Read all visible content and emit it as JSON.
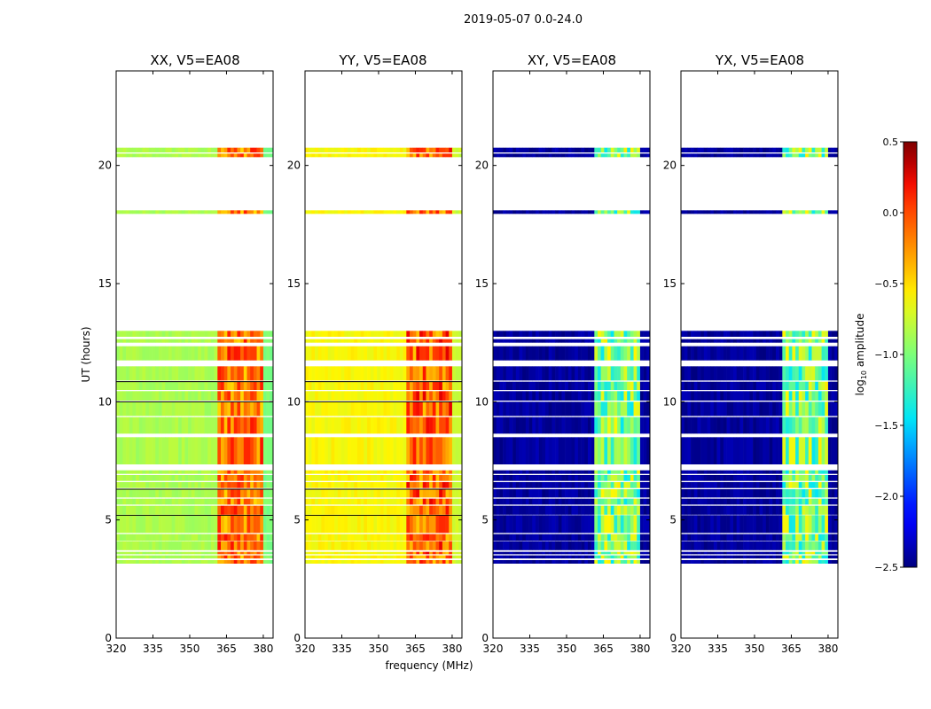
{
  "chart_data": {
    "type": "heatmap",
    "suptitle": "2019-05-07 0.0-24.0",
    "xlabel": "frequency (MHz)",
    "ylabel": "UT (hours)",
    "xlim": [
      320,
      384
    ],
    "ylim": [
      0,
      24
    ],
    "xticks": [
      320,
      335,
      350,
      365,
      380
    ],
    "xtick_labels": [
      "320",
      "335",
      "350",
      "365",
      "380"
    ],
    "yticks": [
      0,
      5,
      10,
      15,
      20
    ],
    "ytick_labels": [
      "0",
      "5",
      "10",
      "15",
      "20"
    ],
    "colorbar": {
      "label": "log10 amplitude",
      "label_base": "log",
      "label_sub": "10",
      "label_rest": " amplitude",
      "range": [
        -2.5,
        0.5
      ],
      "ticks": [
        0.5,
        0.0,
        -0.5,
        -1.0,
        -1.5,
        -2.0,
        -2.5
      ],
      "tick_labels": [
        "0.5",
        "0.0",
        "−0.5",
        "−1.0",
        "−1.5",
        "−2.0",
        "−2.5"
      ],
      "colormap": "jet",
      "colors": [
        "#00007f",
        "#0000ff",
        "#007fff",
        "#00ffff",
        "#7fff7f",
        "#ffff00",
        "#ff7f00",
        "#ff0000",
        "#7f0000"
      ]
    },
    "time_blocks": [
      [
        3.15,
        3.3
      ],
      [
        3.37,
        3.5
      ],
      [
        3.55,
        3.65
      ],
      [
        3.72,
        4.1
      ],
      [
        4.12,
        4.4
      ],
      [
        4.45,
        5.2
      ],
      [
        5.22,
        5.6
      ],
      [
        5.65,
        5.9
      ],
      [
        5.95,
        6.3
      ],
      [
        6.35,
        6.6
      ],
      [
        6.65,
        6.9
      ],
      [
        6.95,
        7.1
      ],
      [
        7.35,
        8.5
      ],
      [
        8.65,
        9.35
      ],
      [
        9.4,
        10.0
      ],
      [
        10.05,
        10.45
      ],
      [
        10.5,
        10.85
      ],
      [
        10.9,
        11.5
      ],
      [
        11.75,
        12.35
      ],
      [
        12.5,
        12.65
      ],
      [
        12.75,
        13.0
      ],
      [
        17.95,
        18.1
      ],
      [
        20.35,
        20.5
      ],
      [
        20.55,
        20.75
      ]
    ],
    "panels": [
      {
        "title": "XX, V5=EA08",
        "background_level": -0.85,
        "rfi_level": -0.15
      },
      {
        "title": "YY, V5=EA08",
        "background_level": -0.6,
        "rfi_level": -0.1
      },
      {
        "title": "XY, V5=EA08",
        "background_level": -2.5,
        "rfi_level": -1.0
      },
      {
        "title": "YX, V5=EA08",
        "background_level": -2.5,
        "rfi_level": -1.0
      }
    ]
  }
}
